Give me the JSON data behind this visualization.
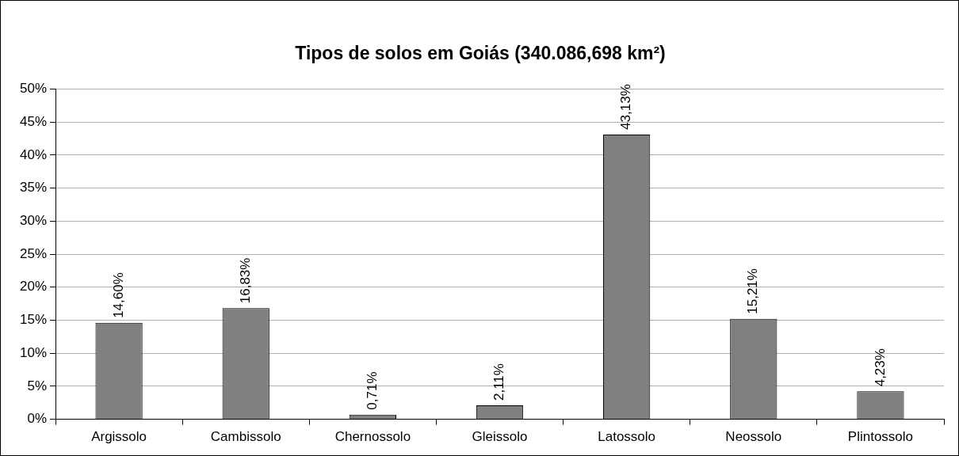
{
  "chart_data": {
    "type": "bar",
    "title": "Tipos de solos em Goiás (340.086,698 km²)",
    "categories": [
      "Argissolo",
      "Cambissolo",
      "Chernossolo",
      "Gleissolo",
      "Latossolo",
      "Neossolo",
      "Plintossolo"
    ],
    "values": [
      14.6,
      16.83,
      0.71,
      2.11,
      43.13,
      15.21,
      4.23
    ],
    "value_labels": [
      "14,60%",
      "16,83%",
      "0,71%",
      "2,11%",
      "43,13%",
      "15,21%",
      "4,23%"
    ],
    "color": "#808080",
    "ylim": [
      0,
      50
    ],
    "yticks": [
      {
        "value": 0,
        "label": "0%"
      },
      {
        "value": 5,
        "label": "5%"
      },
      {
        "value": 10,
        "label": "10%"
      },
      {
        "value": 15,
        "label": "15%"
      },
      {
        "value": 20,
        "label": "20%"
      },
      {
        "value": 25,
        "label": "25%"
      },
      {
        "value": 30,
        "label": "30%"
      },
      {
        "value": 35,
        "label": "35%"
      },
      {
        "value": 40,
        "label": "40%"
      },
      {
        "value": 45,
        "label": "45%"
      },
      {
        "value": 50,
        "label": "50%"
      }
    ],
    "grid": "y",
    "legend": false
  }
}
